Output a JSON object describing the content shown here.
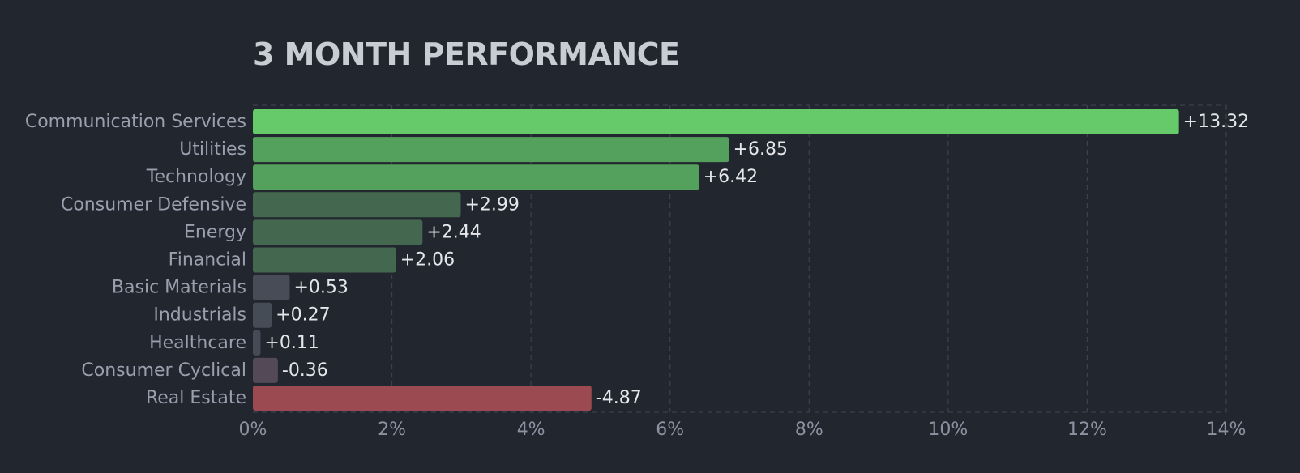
{
  "chart_data": {
    "type": "bar",
    "orientation": "horizontal",
    "title": "3 MONTH PERFORMANCE",
    "categories": [
      "Communication Services",
      "Utilities",
      "Technology",
      "Consumer Defensive",
      "Energy",
      "Financial",
      "Basic Materials",
      "Industrials",
      "Healthcare",
      "Consumer Cyclical",
      "Real Estate"
    ],
    "values": [
      13.32,
      6.85,
      6.42,
      2.99,
      2.44,
      2.06,
      0.53,
      0.27,
      0.11,
      -0.36,
      -4.87
    ],
    "value_labels": [
      "+13.32",
      "+6.85",
      "+6.42",
      "+2.99",
      "+2.44",
      "+2.06",
      "+0.53",
      "+0.27",
      "+0.11",
      "-0.36",
      "-4.87"
    ],
    "bar_colors": [
      "#66c96a",
      "#54a05d",
      "#54a05d",
      "#44684f",
      "#44684f",
      "#44684f",
      "#474c57",
      "#464c55",
      "#474b58",
      "#534957",
      "#9b4a52"
    ],
    "x_ticks": [
      "0%",
      "2%",
      "4%",
      "6%",
      "8%",
      "10%",
      "12%",
      "14%"
    ],
    "x_tick_values": [
      0,
      2,
      4,
      6,
      8,
      10,
      12,
      14
    ],
    "xlim": [
      0,
      14
    ],
    "bar_length_uses_absolute_value": true,
    "grid": true,
    "xlabel": "",
    "ylabel": ""
  }
}
